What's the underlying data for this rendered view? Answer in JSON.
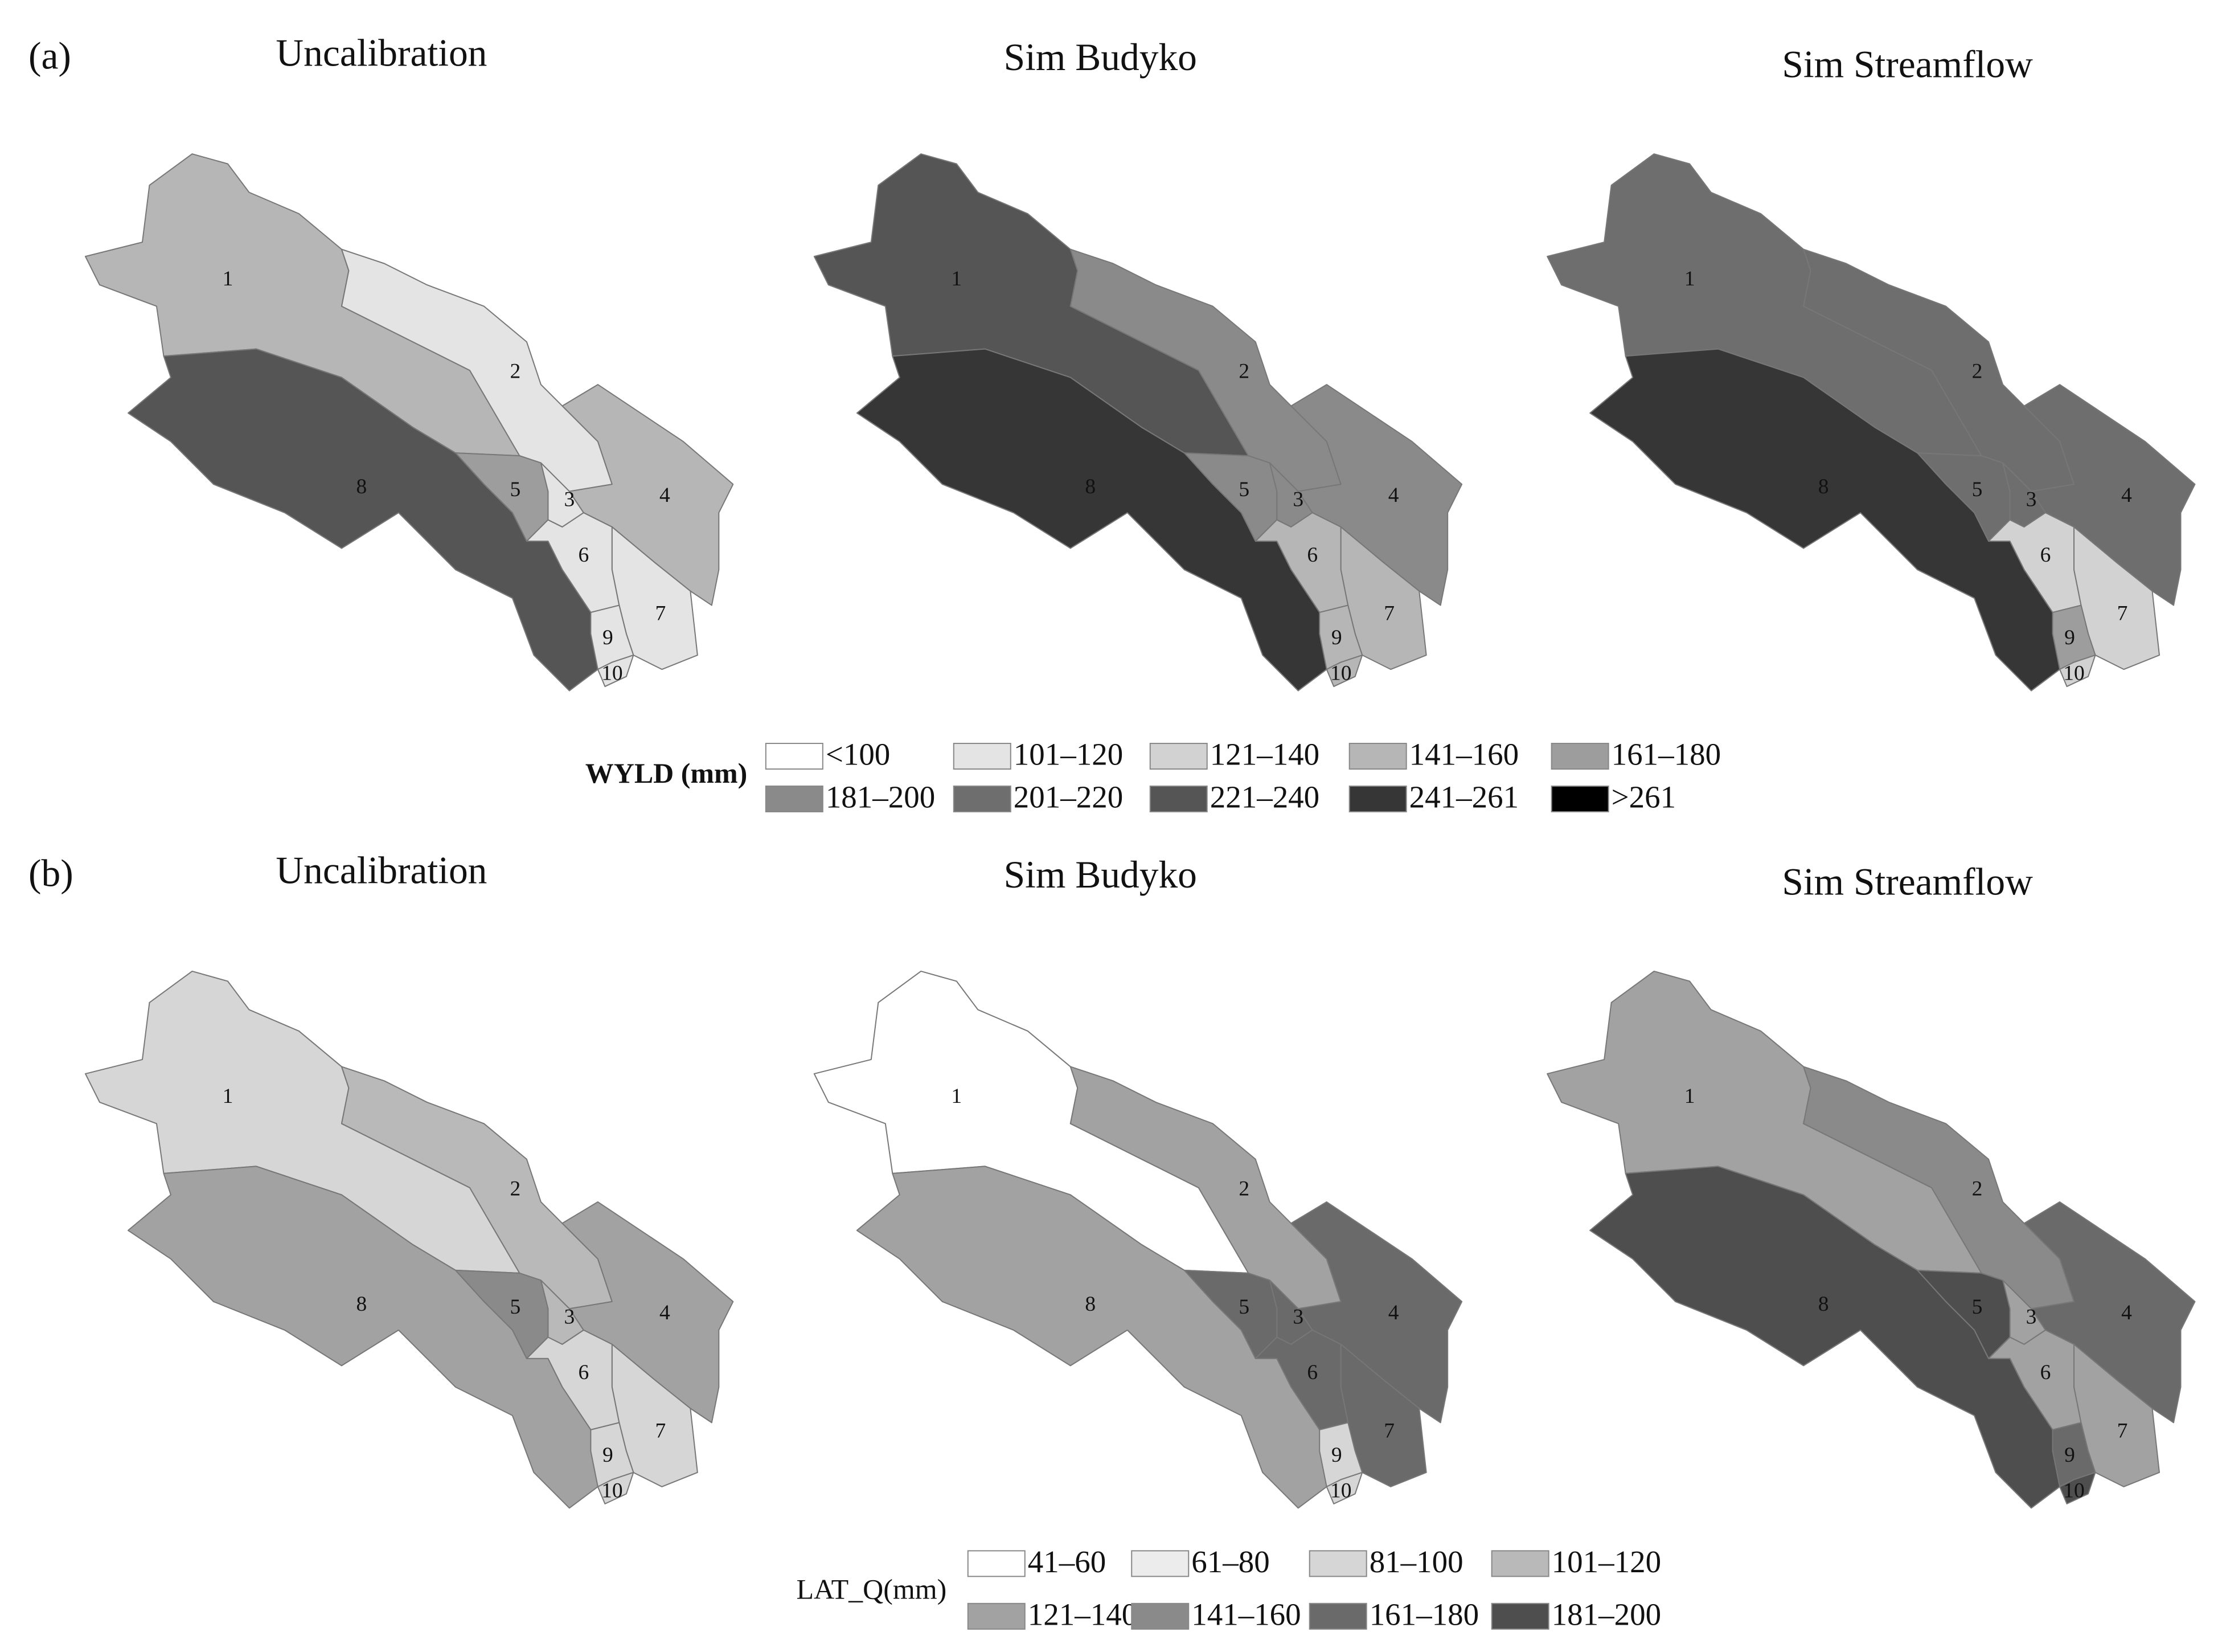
{
  "subbasins": [
    "1",
    "2",
    "3",
    "4",
    "5",
    "6",
    "7",
    "8",
    "9",
    "10"
  ],
  "panels": [
    {
      "tag": "(a)",
      "maps": [
        {
          "title": "Uncalibration",
          "classes": [
            3,
            1,
            1,
            3,
            4,
            1,
            1,
            7,
            1,
            1
          ]
        },
        {
          "title": "Sim Budyko",
          "classes": [
            7,
            5,
            5,
            5,
            5,
            3,
            3,
            8,
            3,
            3
          ]
        },
        {
          "title": "Sim Streamflow",
          "classes": [
            6,
            6,
            6,
            6,
            6,
            2,
            2,
            8,
            4,
            2
          ]
        }
      ],
      "legend": {
        "title": "WYLD (mm)",
        "bold": true,
        "items": [
          {
            "label": "<100",
            "color": "#ffffff"
          },
          {
            "label": "101–120",
            "color": "#e4e4e4"
          },
          {
            "label": "121–140",
            "color": "#d2d2d2"
          },
          {
            "label": "141–160",
            "color": "#b6b6b6"
          },
          {
            "label": "161–180",
            "color": "#9d9d9d"
          },
          {
            "label": "181–200",
            "color": "#8a8a8a"
          },
          {
            "label": "201–220",
            "color": "#6e6e6e"
          },
          {
            "label": "221–240",
            "color": "#555555"
          },
          {
            "label": "241–261",
            "color": "#363636"
          },
          {
            "label": ">261",
            "color": "#000000"
          }
        ]
      }
    },
    {
      "tag": "(b)",
      "maps": [
        {
          "title": "Uncalibration",
          "classes": [
            2,
            3,
            3,
            4,
            5,
            2,
            2,
            4,
            2,
            2
          ]
        },
        {
          "title": "Sim Budyko",
          "classes": [
            0,
            4,
            6,
            6,
            6,
            6,
            6,
            4,
            2,
            2
          ]
        },
        {
          "title": "Sim Streamflow",
          "classes": [
            4,
            5,
            4,
            6,
            7,
            4,
            4,
            7,
            6,
            7
          ]
        }
      ],
      "legend": {
        "title": "LAT_Q(mm)",
        "bold": false,
        "items": [
          {
            "label": "41–60",
            "color": "#ffffff"
          },
          {
            "label": "61–80",
            "color": "#ececec"
          },
          {
            "label": "81–100",
            "color": "#d6d6d6"
          },
          {
            "label": "101–120",
            "color": "#b9b9b9"
          },
          {
            "label": "121–140",
            "color": "#a2a2a2"
          },
          {
            "label": "141–160",
            "color": "#8a8a8a"
          },
          {
            "label": "161–180",
            "color": "#6a6a6a"
          },
          {
            "label": "181–200",
            "color": "#4e4e4e"
          }
        ]
      }
    }
  ]
}
